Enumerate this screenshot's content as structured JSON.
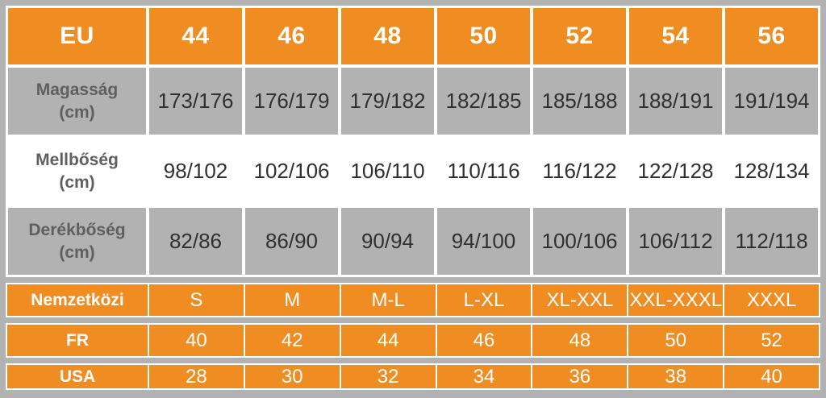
{
  "colors": {
    "canvas": "#B2B2B2",
    "orange": "#EF8D22",
    "cellgray": "#B2B2B2",
    "labelgray": "#5F5F5F",
    "valtext": "#303030"
  },
  "table": {
    "header": {
      "label": "EU",
      "sizes": [
        "44",
        "46",
        "48",
        "50",
        "52",
        "54",
        "56"
      ]
    },
    "rows": [
      {
        "label": "Magasság",
        "unit": "(cm)",
        "values": [
          "173/176",
          "176/179",
          "179/182",
          "182/185",
          "185/188",
          "188/191",
          "191/194"
        ]
      },
      {
        "label": "Mellbőség",
        "unit": "(cm)",
        "values": [
          "98/102",
          "102/106",
          "106/110",
          "110/116",
          "116/122",
          "122/128",
          "128/134"
        ]
      },
      {
        "label": "Derékbőség",
        "unit": "(cm)",
        "values": [
          "82/86",
          "86/90",
          "90/94",
          "94/100",
          "100/106",
          "106/112",
          "112/118"
        ]
      }
    ]
  },
  "conversion_bars": [
    {
      "label": "Nemzetközi",
      "values": [
        "S",
        "M",
        "M-L",
        "L-XL",
        "XL-XXL",
        "XXL-XXXL",
        "XXXL"
      ]
    },
    {
      "label": "FR",
      "values": [
        "40",
        "42",
        "44",
        "46",
        "48",
        "50",
        "52"
      ]
    },
    {
      "label": "USA",
      "values": [
        "28",
        "30",
        "32",
        "34",
        "36",
        "38",
        "40"
      ]
    }
  ],
  "chart_data": {
    "type": "table",
    "columns": [
      "EU",
      "44",
      "46",
      "48",
      "50",
      "52",
      "54",
      "56"
    ],
    "rows": [
      [
        "Magasság (cm)",
        "173/176",
        "176/179",
        "179/182",
        "182/185",
        "185/188",
        "188/191",
        "191/194"
      ],
      [
        "Mellbőség (cm)",
        "98/102",
        "102/106",
        "106/110",
        "110/116",
        "116/122",
        "122/128",
        "128/134"
      ],
      [
        "Derékbőség (cm)",
        "82/86",
        "86/90",
        "90/94",
        "94/100",
        "100/106",
        "106/112",
        "112/118"
      ],
      [
        "Nemzetközi",
        "S",
        "M",
        "M-L",
        "L-XL",
        "XL-XXL",
        "XXL-XXXL",
        "XXXL"
      ],
      [
        "FR",
        "40",
        "42",
        "44",
        "46",
        "48",
        "50",
        "52"
      ],
      [
        "USA",
        "28",
        "30",
        "32",
        "34",
        "36",
        "38",
        "40"
      ]
    ]
  }
}
